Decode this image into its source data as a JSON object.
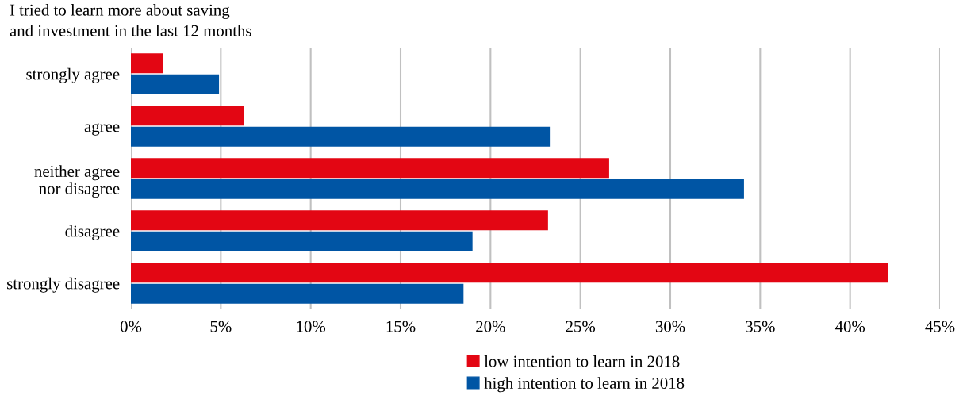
{
  "chart_data": {
    "type": "bar",
    "orientation": "horizontal",
    "title": "I tried to learn more about saving\nand investment in the last 12 months",
    "categories": [
      "strongly agree",
      "agree",
      "neither agree\nnor disagree",
      "disagree",
      "strongly disagree"
    ],
    "series": [
      {
        "name": "low intention to learn in 2018",
        "color": "#e30613",
        "values": [
          1.8,
          6.3,
          26.6,
          23.2,
          42.1
        ]
      },
      {
        "name": "high intention to learn in 2018",
        "color": "#0055a4",
        "values": [
          4.9,
          23.3,
          34.1,
          19.0,
          18.5
        ]
      }
    ],
    "xlim": [
      0,
      45
    ],
    "xticks": [
      {
        "value": 0,
        "label": "0%"
      },
      {
        "value": 5,
        "label": "5%"
      },
      {
        "value": 10,
        "label": "10%"
      },
      {
        "value": 15,
        "label": "15%"
      },
      {
        "value": 20,
        "label": "20%"
      },
      {
        "value": 25,
        "label": "25%"
      },
      {
        "value": 30,
        "label": "30%"
      },
      {
        "value": 35,
        "label": "35%"
      },
      {
        "value": 40,
        "label": "40%"
      },
      {
        "value": 45,
        "label": "45%"
      }
    ],
    "grid": "x",
    "legend": "bottom"
  }
}
